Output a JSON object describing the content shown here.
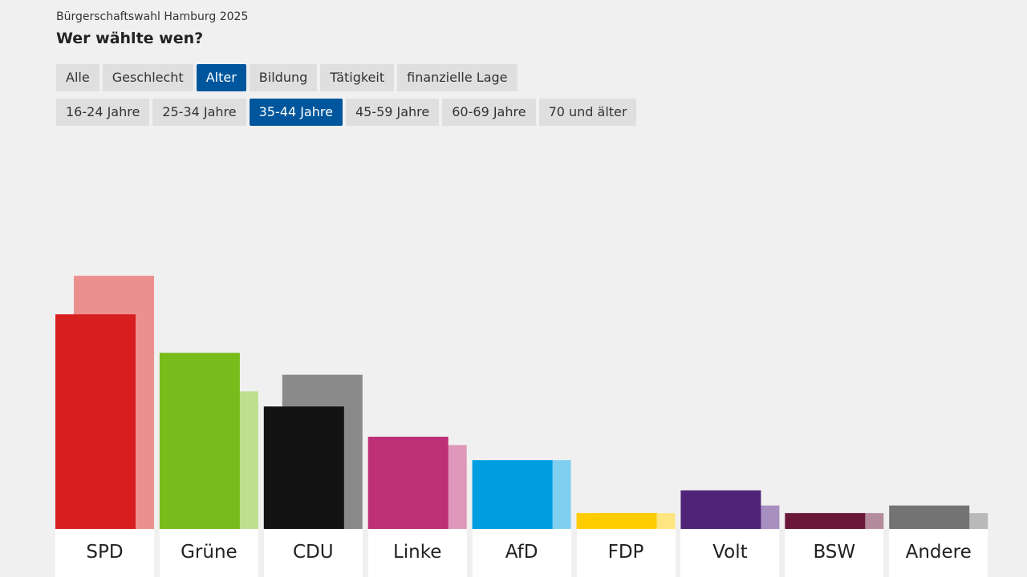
{
  "header": {
    "supertitle": "Bürgerschaftswahl Hamburg 2025",
    "title": "Wer wählte wen?"
  },
  "filters": {
    "categories": [
      {
        "label": "Alle",
        "active": false
      },
      {
        "label": "Geschlecht",
        "active": false
      },
      {
        "label": "Alter",
        "active": true
      },
      {
        "label": "Bildung",
        "active": false
      },
      {
        "label": "Tätigkeit",
        "active": false
      },
      {
        "label": "finanzielle Lage",
        "active": false
      }
    ],
    "subgroups": [
      {
        "label": "16-24 Jahre",
        "active": false
      },
      {
        "label": "25-34 Jahre",
        "active": false
      },
      {
        "label": "35-44 Jahre",
        "active": true
      },
      {
        "label": "45-59 Jahre",
        "active": false
      },
      {
        "label": "60-69 Jahre",
        "active": false
      },
      {
        "label": "70 und älter",
        "active": false
      }
    ]
  },
  "chart_data": {
    "type": "bar",
    "categories": [
      "SPD",
      "Grüne",
      "CDU",
      "Linke",
      "AfD",
      "FDP",
      "Volt",
      "BSW",
      "Andere"
    ],
    "series": [
      {
        "values": [
          28.4,
          23.3,
          16.2,
          12.2,
          9.1,
          2.1,
          5.1,
          2.1,
          3.1
        ]
      },
      {
        "values": [
          33.5,
          18.2,
          20.4,
          11.1,
          9.1,
          2.1,
          3.1,
          2.1,
          2.1
        ]
      }
    ],
    "colors": [
      "#d71f1f",
      "#78bc1b",
      "#121212",
      "#bd3075",
      "#009ee0",
      "#ffcc00",
      "#502379",
      "#6a1739",
      "#737373"
    ],
    "colors_light": [
      "#eb908e",
      "#bde08f",
      "#8a8a8a",
      "#de97bb",
      "#80cff0",
      "#ffe580",
      "#a78fbf",
      "#b48b9c",
      "#b9b9b9"
    ],
    "grid": false,
    "legend": "none"
  }
}
